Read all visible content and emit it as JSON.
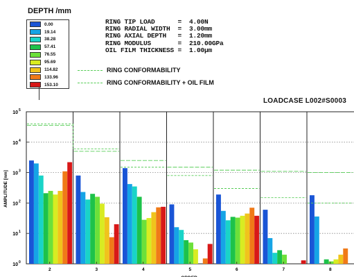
{
  "legend": {
    "title": "DEPTH /mm",
    "entries": [
      {
        "label": "0.00",
        "color": "#1a55d6"
      },
      {
        "label": "19.14",
        "color": "#16a4e6"
      },
      {
        "label": "38.28",
        "color": "#19d4c8"
      },
      {
        "label": "57.41",
        "color": "#1dc24a"
      },
      {
        "label": "76.55",
        "color": "#6ce03a"
      },
      {
        "label": "95.69",
        "color": "#d8ec22"
      },
      {
        "label": "114.82",
        "color": "#f0c41c"
      },
      {
        "label": "133.96",
        "color": "#f07a18"
      },
      {
        "label": "153.10",
        "color": "#d81818"
      }
    ]
  },
  "params": [
    "RING TIP LOAD      =  4.00N",
    "RING RADIAL WIDTH  =  3.00mm",
    "RING AXIAL DEPTH   =  1.20mm",
    "RING MODULUS       =  210.00GPa",
    "OIL FILM THICKNESS =  1.00μm"
  ],
  "conformability": {
    "ring_label": "RING CONFORMABILITY",
    "ring_oil_label": "RING CONFORMABILITY + OIL FILM",
    "color": "#55cc55"
  },
  "loadcase": "LOADCASE L002#S0003",
  "chart_data": {
    "type": "bar",
    "xlabel": "ORDER",
    "ylabel": "AMPLITUDE [nm]",
    "ylim": [
      1,
      100000
    ],
    "yscale": "log",
    "y_tick_exponents": [
      0,
      1,
      2,
      3,
      4,
      5
    ],
    "categories": [
      "2",
      "3",
      "4",
      "5",
      "6",
      "7",
      "8"
    ],
    "series": [
      {
        "name": "0.00",
        "values": [
          2500,
          800,
          1400,
          90,
          190,
          60,
          180
        ]
      },
      {
        "name": "19.14",
        "values": [
          2000,
          230,
          420,
          16,
          55,
          7,
          36
        ]
      },
      {
        "name": "38.28",
        "values": [
          800,
          130,
          350,
          13,
          27,
          2.3,
          0.9
        ]
      },
      {
        "name": "57.41",
        "values": [
          210,
          200,
          160,
          6,
          35,
          2.8,
          1.4
        ]
      },
      {
        "name": "76.55",
        "values": [
          250,
          160,
          28,
          5,
          33,
          2.0,
          1.2
        ]
      },
      {
        "name": "95.69",
        "values": [
          190,
          95,
          32,
          3,
          38,
          1.0,
          1.4
        ]
      },
      {
        "name": "114.82",
        "values": [
          250,
          34,
          50,
          1.0,
          45,
          1.0,
          2.0
        ]
      },
      {
        "name": "133.96",
        "values": [
          1100,
          7.5,
          72,
          1.5,
          70,
          1.0,
          3.2
        ]
      },
      {
        "name": "153.10",
        "values": [
          2200,
          20,
          75,
          4.5,
          38,
          1.3,
          1.0
        ]
      }
    ],
    "conformability": [
      40000,
      6000,
      1500,
      800,
      300,
      150,
      100
    ],
    "conformability_oil": [
      36000,
      5000,
      2500,
      1500,
      1200,
      1100,
      1000
    ]
  }
}
